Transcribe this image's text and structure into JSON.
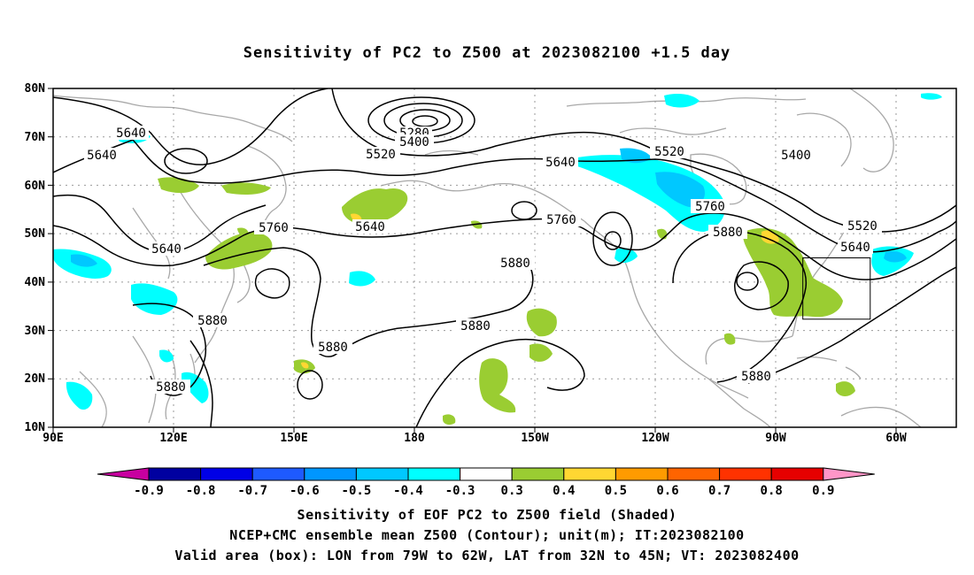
{
  "title": "Sensitivity of PC2 to Z500 at 2023082100 +1.5 day",
  "lat_labels": [
    "80N",
    "70N",
    "60N",
    "50N",
    "40N",
    "30N",
    "20N",
    "10N"
  ],
  "lon_labels": [
    "90E",
    "120E",
    "150E",
    "180",
    "150W",
    "120W",
    "90W",
    "60W"
  ],
  "contour_labels": [
    {
      "text": "5640"
    },
    {
      "text": "5640"
    },
    {
      "text": "5640"
    },
    {
      "text": "5640"
    },
    {
      "text": "5640"
    },
    {
      "text": "5640"
    },
    {
      "text": "5280"
    },
    {
      "text": "5400"
    },
    {
      "text": "5520"
    },
    {
      "text": "5520"
    },
    {
      "text": "5520"
    },
    {
      "text": "5400"
    },
    {
      "text": "5760"
    },
    {
      "text": "5760"
    },
    {
      "text": "5760"
    },
    {
      "text": "5880"
    },
    {
      "text": "5880"
    },
    {
      "text": "5880"
    },
    {
      "text": "5880"
    },
    {
      "text": "5880"
    },
    {
      "text": "5880"
    },
    {
      "text": "5880"
    }
  ],
  "colorbar": {
    "colors": [
      "#0000a0",
      "#0000e6",
      "#1e5aff",
      "#0096ff",
      "#00c8ff",
      "#00ffff",
      "#ffffff",
      "#9acd32",
      "#ffd732",
      "#ff9b00",
      "#ff6400",
      "#ff3200",
      "#e60000"
    ],
    "left_arrow_color": "#c800a0",
    "right_arrow_color": "#ff96c8",
    "labels": [
      "-0.9",
      "-0.8",
      "-0.7",
      "-0.6",
      "-0.5",
      "-0.4",
      "-0.3",
      "0.3",
      "0.4",
      "0.5",
      "0.6",
      "0.7",
      "0.8",
      "0.9"
    ]
  },
  "captions": [
    "Sensitivity of EOF PC2 to Z500 field (Shaded)",
    "NCEP+CMC ensemble mean Z500 (Contour); unit(m); IT:2023082100",
    "Valid area (box): LON from 79W to 62W, LAT from 32N to 45N; VT: 2023082400"
  ]
}
